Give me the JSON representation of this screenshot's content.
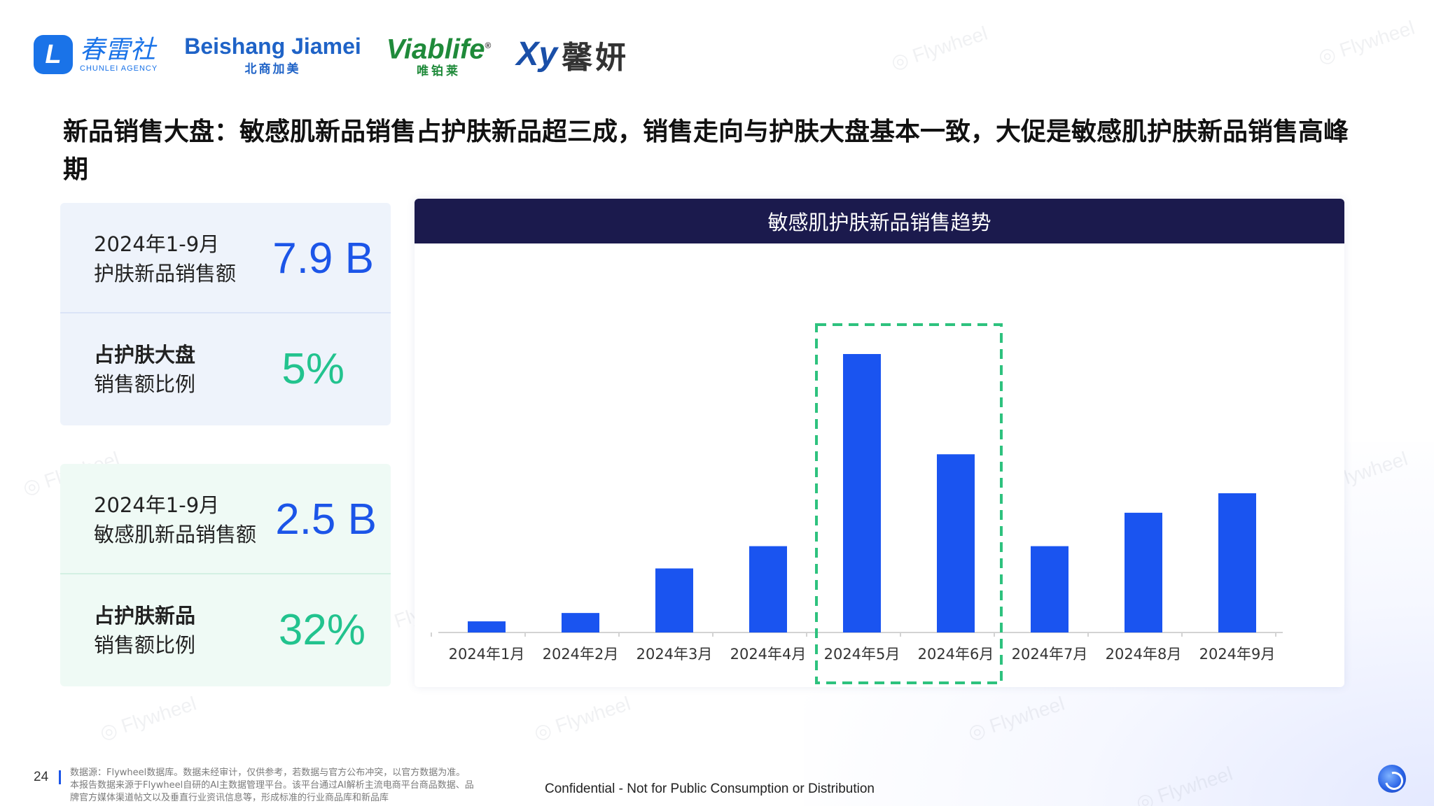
{
  "logos": {
    "chunlei_mark": "L",
    "chunlei_cn": "春雷社",
    "chunlei_en": "CHUNLEI AGENCY",
    "beishang_en": "Beishang Jiamei",
    "beishang_cn": "北商加美",
    "viablife_en": "Viablife",
    "viablife_reg": "®",
    "viablife_cn": "唯铂莱",
    "xinyan_mark_x": "X",
    "xinyan_mark_y": "y",
    "xinyan_cn": "馨妍"
  },
  "title": "新品销售大盘：敏感肌新品销售占护肤新品超三成，销售走向与护肤大盘基本一致，大促是敏感肌护肤新品销售高峰期",
  "cards": {
    "skincare": {
      "label_line1": "2024年1-9月",
      "label_line2": "护肤新品销售额",
      "value": "7.9 B",
      "share_line1": "占护肤大盘",
      "share_line2": "销售额比例",
      "share_value": "5%"
    },
    "sensitive": {
      "label_line1": "2024年1-9月",
      "label_line2": "敏感肌新品销售额",
      "value": "2.5 B",
      "share_line1": "占护肤新品",
      "share_line2": "销售额比例",
      "share_value": "32%"
    }
  },
  "chart_data": {
    "type": "bar",
    "title": "敏感肌护肤新品销售趋势",
    "categories": [
      "2024年1月",
      "2024年2月",
      "2024年3月",
      "2024年4月",
      "2024年5月",
      "2024年6月",
      "2024年7月",
      "2024年8月",
      "2024年9月"
    ],
    "values": [
      4,
      7,
      23,
      31,
      100,
      64,
      31,
      43,
      50
    ],
    "highlight_categories": [
      "2024年5月",
      "2024年6月"
    ],
    "highlight_color": "#2ec27e",
    "bar_color": "#1a54f0",
    "grid": false,
    "ylim": [
      0,
      100
    ]
  },
  "footer": {
    "page_number": "24",
    "source_line1": "数据源：Flywheel数据库。数据未经审计，仅供参考，若数据与官方公布冲突，以官方数据为准。",
    "source_line2": "本报告数据来源于Flywheel自研的AI主数据管理平台。该平台通过AI解析主流电商平台商品数据、品",
    "source_line3": "牌官方媒体渠道帖文以及垂直行业资讯信息等，形成标准的行业商品库和新品库",
    "confidential": "Confidential - Not for Public Consumption or Distribution"
  },
  "watermark": "Flywheel"
}
